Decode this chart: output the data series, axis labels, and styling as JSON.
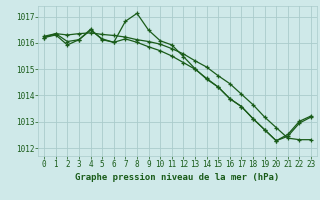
{
  "xlabel": "Graphe pression niveau de la mer (hPa)",
  "ylim": [
    1011.7,
    1017.4
  ],
  "xlim": [
    -0.5,
    23.5
  ],
  "yticks": [
    1012,
    1013,
    1014,
    1015,
    1016,
    1017
  ],
  "xticks": [
    0,
    1,
    2,
    3,
    4,
    5,
    6,
    7,
    8,
    9,
    10,
    11,
    12,
    13,
    14,
    15,
    16,
    17,
    18,
    19,
    20,
    21,
    22,
    23
  ],
  "bg_color": "#cfe9e9",
  "grid_color": "#aacccc",
  "line_color": "#1a5c1a",
  "line1_x": [
    0,
    1,
    2,
    3,
    4,
    5,
    6,
    7,
    8,
    9,
    10,
    11,
    12,
    13,
    14,
    15,
    16,
    17,
    18,
    19,
    20,
    21,
    22,
    23
  ],
  "line1_y": [
    1016.2,
    1016.35,
    1016.3,
    1016.35,
    1016.38,
    1016.32,
    1016.28,
    1016.22,
    1016.12,
    1016.05,
    1015.95,
    1015.78,
    1015.58,
    1015.32,
    1015.08,
    1014.75,
    1014.45,
    1014.05,
    1013.65,
    1013.18,
    1012.78,
    1012.38,
    1012.32,
    1012.32
  ],
  "line2_x": [
    0,
    1,
    2,
    3,
    4,
    5,
    6,
    7,
    8,
    9,
    10,
    11,
    12,
    13,
    14,
    15,
    16,
    17,
    18,
    19,
    20,
    21,
    22,
    23
  ],
  "line2_y": [
    1016.2,
    1016.3,
    1015.92,
    1016.12,
    1016.52,
    1016.12,
    1016.02,
    1016.15,
    1016.02,
    1015.85,
    1015.7,
    1015.5,
    1015.25,
    1015.0,
    1014.65,
    1014.32,
    1013.88,
    1013.58,
    1013.12,
    1012.7,
    1012.28,
    1012.45,
    1012.95,
    1013.18
  ],
  "line3_x": [
    0,
    1,
    2,
    3,
    4,
    5,
    6,
    7,
    8,
    9,
    10,
    11,
    12,
    13,
    14,
    15,
    16,
    17,
    18,
    19,
    20,
    21,
    22,
    23
  ],
  "line3_y": [
    1016.25,
    1016.35,
    1016.05,
    1016.12,
    1016.48,
    1016.15,
    1016.02,
    1016.82,
    1017.12,
    1016.48,
    1016.08,
    1015.92,
    1015.48,
    1015.02,
    1014.62,
    1014.32,
    1013.88,
    1013.58,
    1013.12,
    1012.7,
    1012.28,
    1012.52,
    1013.02,
    1013.22
  ],
  "font_color": "#1a5c1a",
  "tick_fontsize": 5.5,
  "label_fontsize": 6.5
}
